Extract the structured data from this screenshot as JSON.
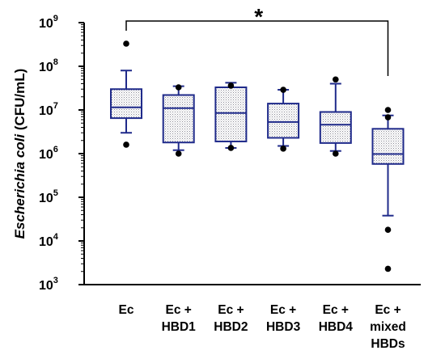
{
  "chart_data": {
    "type": "box",
    "ylabel": {
      "italic": "Escherichia coli",
      "normal": " (CFU/mL)"
    },
    "yscale": "log",
    "ylim": [
      1000,
      1000000000
    ],
    "y_ticks": [
      {
        "base": "10",
        "exp": "3",
        "value": 1000
      },
      {
        "base": "10",
        "exp": "4",
        "value": 10000
      },
      {
        "base": "10",
        "exp": "5",
        "value": 100000
      },
      {
        "base": "10",
        "exp": "6",
        "value": 1000000
      },
      {
        "base": "10",
        "exp": "7",
        "value": 10000000
      },
      {
        "base": "10",
        "exp": "8",
        "value": 100000000
      },
      {
        "base": "10",
        "exp": "9",
        "value": 1000000000
      }
    ],
    "categories": [
      [
        "Ec"
      ],
      [
        "Ec +",
        "HBD1"
      ],
      [
        "Ec +",
        "HBD2"
      ],
      [
        "Ec +",
        "HBD3"
      ],
      [
        "Ec +",
        "HBD4"
      ],
      [
        "Ec +",
        "mixed",
        "HBDs"
      ]
    ],
    "boxes": [
      {
        "whisker_low": 3000000,
        "q1": 6500000,
        "median": 11500000,
        "q3": 30000000,
        "whisker_high": 80000000,
        "outliers": [
          1600000,
          330000000
        ]
      },
      {
        "whisker_low": 1200000,
        "q1": 1800000,
        "median": 11000000,
        "q3": 22000000,
        "whisker_high": 35000000,
        "outliers": [
          1000000,
          33000000
        ]
      },
      {
        "whisker_low": 1350000,
        "q1": 1900000,
        "median": 8500000,
        "q3": 33000000,
        "whisker_high": 42000000,
        "outliers": [
          1350000,
          36000000
        ]
      },
      {
        "whisker_low": 1500000,
        "q1": 2300000,
        "median": 5300000,
        "q3": 14000000,
        "whisker_high": 29000000,
        "outliers": [
          1300000,
          29000000
        ]
      },
      {
        "whisker_low": 1150000,
        "q1": 1750000,
        "median": 4600000,
        "q3": 9000000,
        "whisker_high": 40000000,
        "outliers": [
          1000000,
          50000000
        ]
      },
      {
        "whisker_low": 38000,
        "q1": 580000,
        "median": 980000,
        "q3": 3700000,
        "whisker_high": 7500000,
        "outliers": [
          2300,
          18000,
          6800000,
          10000000
        ]
      }
    ],
    "significance": {
      "label": "*",
      "from_category": 0,
      "to_category": 5
    },
    "colors": {
      "box_stroke": "#1f2a8a",
      "box_fill": "#d9d9de",
      "outlier": "#000000",
      "axis": "#000000"
    }
  }
}
